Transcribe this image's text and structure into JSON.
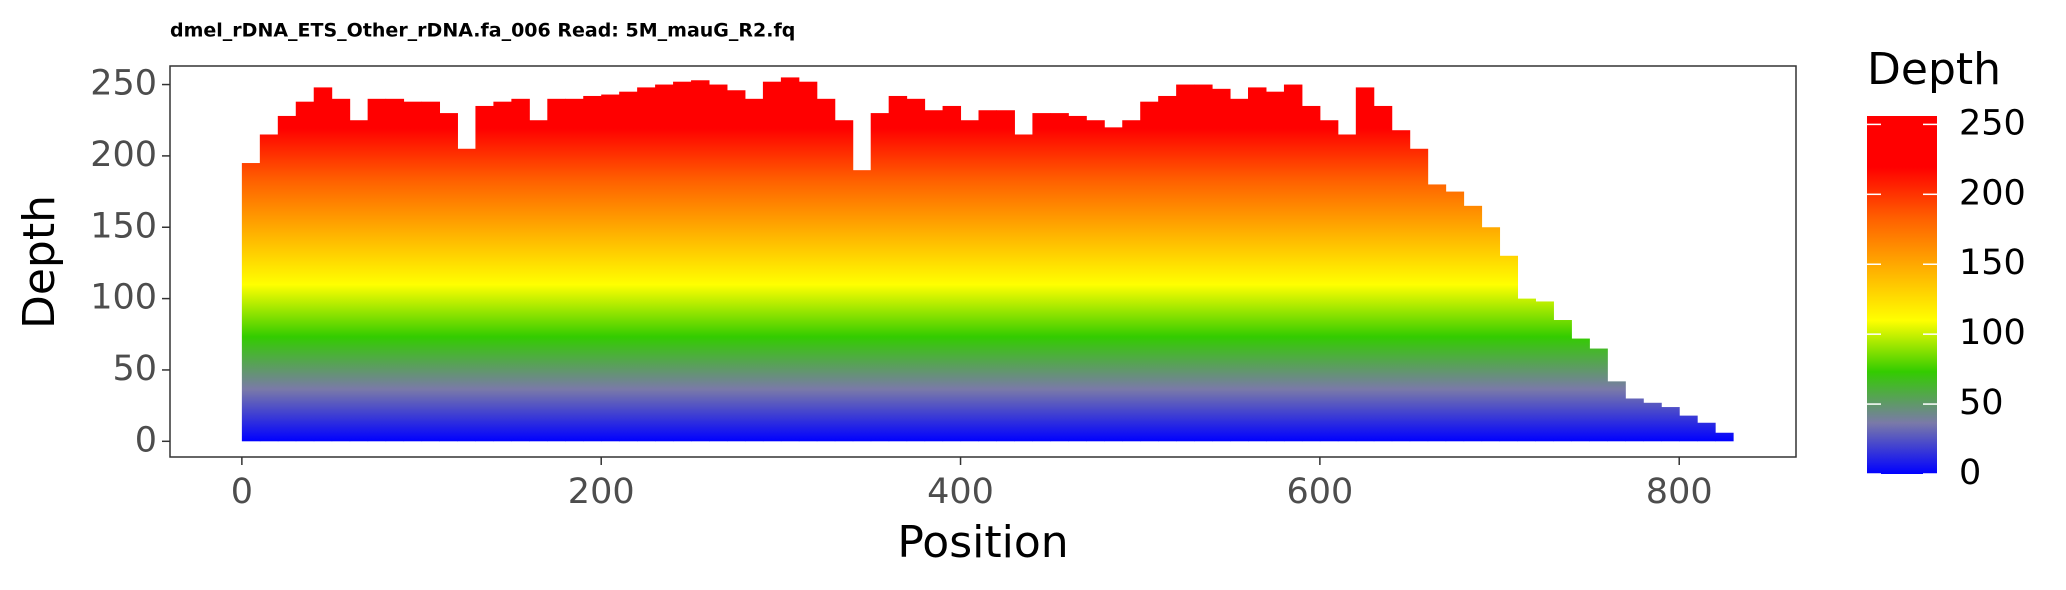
{
  "chart_data": {
    "type": "bar",
    "title": "dmel_rDNA_ETS_Other_rDNA.fa_006 Read: 5M_mauG_R2.fq",
    "xlabel": "Position",
    "ylabel": "Depth",
    "x": [
      0,
      10,
      20,
      30,
      40,
      50,
      60,
      70,
      80,
      90,
      100,
      110,
      120,
      130,
      140,
      150,
      160,
      170,
      180,
      190,
      200,
      210,
      220,
      230,
      240,
      250,
      260,
      270,
      280,
      290,
      300,
      310,
      320,
      330,
      340,
      350,
      360,
      370,
      380,
      390,
      400,
      410,
      420,
      430,
      440,
      450,
      460,
      470,
      480,
      490,
      500,
      510,
      520,
      530,
      540,
      550,
      560,
      570,
      580,
      590,
      600,
      610,
      620,
      630,
      640,
      650,
      660,
      670,
      680,
      690,
      700,
      710,
      720,
      730,
      740,
      750,
      760,
      770,
      780,
      790,
      800,
      810,
      820
    ],
    "values": [
      195,
      215,
      228,
      238,
      248,
      240,
      225,
      240,
      240,
      238,
      238,
      230,
      205,
      235,
      238,
      240,
      225,
      240,
      240,
      242,
      243,
      245,
      248,
      250,
      252,
      253,
      250,
      246,
      240,
      252,
      255,
      252,
      240,
      225,
      190,
      230,
      242,
      240,
      232,
      235,
      225,
      232,
      232,
      215,
      230,
      230,
      228,
      225,
      220,
      225,
      238,
      242,
      250,
      250,
      247,
      240,
      248,
      245,
      250,
      235,
      225,
      215,
      248,
      235,
      218,
      205,
      180,
      175,
      165,
      150,
      130,
      100,
      98,
      85,
      72,
      65,
      42,
      30,
      27,
      24,
      18,
      13,
      6
    ],
    "xlim": [
      -40,
      865
    ],
    "xticks": [
      0,
      200,
      400,
      600,
      800
    ],
    "ylim": [
      -11,
      263
    ],
    "yticks": [
      0,
      50,
      100,
      150,
      200,
      250
    ],
    "colorbar": {
      "title": "Depth",
      "lim": [
        0,
        256
      ],
      "ticks": [
        0,
        50,
        100,
        150,
        200,
        250
      ],
      "colors": [
        "#0000ff",
        "#7a7aa8",
        "#33cc00",
        "#ffff00",
        "#ffb000",
        "#ff6000",
        "#ff0000",
        "#ff0000"
      ]
    }
  }
}
